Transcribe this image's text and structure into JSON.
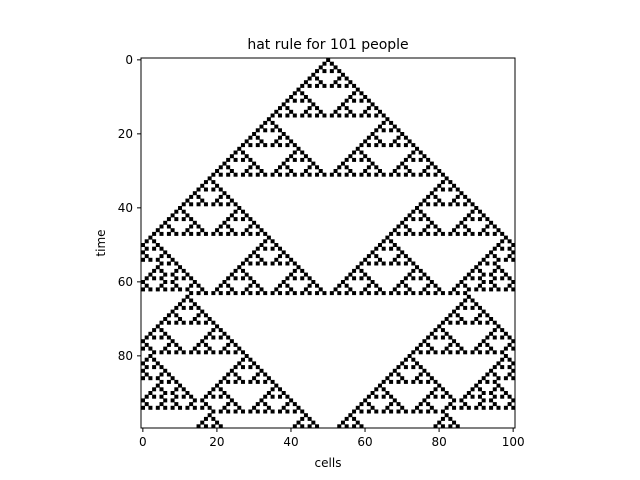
{
  "chart_data": {
    "type": "heatmap",
    "title": "hat rule for 101 people",
    "xlabel": "cells",
    "ylabel": "time",
    "grid": false,
    "cells": 101,
    "steps": 100,
    "xlim": [
      -0.5,
      100.5
    ],
    "ylim": [
      99.5,
      -0.5
    ],
    "x_ticks": [
      0,
      20,
      40,
      60,
      80,
      100
    ],
    "y_ticks": [
      0,
      20,
      40,
      60,
      80
    ],
    "cell_values": [
      0,
      1
    ],
    "colormap": {
      "0": "#ffffff",
      "1": "#000000"
    },
    "rule": "XOR of left and right neighbours (rule 90), fixed white boundaries",
    "initial_condition": {
      "length": 101,
      "black_cells": [
        50
      ]
    }
  }
}
